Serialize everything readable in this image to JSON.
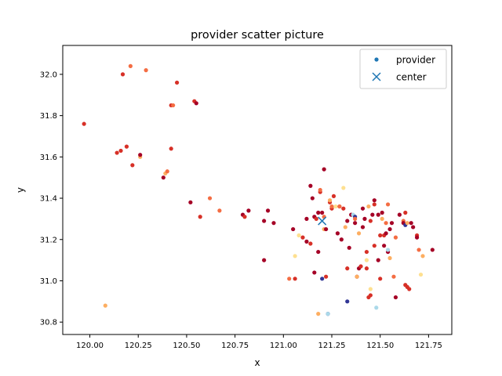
{
  "chart_data": {
    "type": "scatter",
    "title": "provider scatter picture",
    "xlabel": "x",
    "ylabel": "y",
    "xlim": [
      119.86,
      121.87
    ],
    "ylim": [
      30.74,
      32.14
    ],
    "xticks": [
      120.0,
      120.25,
      120.5,
      120.75,
      121.0,
      121.25,
      121.5,
      121.75
    ],
    "xtick_labels": [
      "120.00",
      "120.25",
      "120.50",
      "120.75",
      "121.00",
      "121.25",
      "121.50",
      "121.75"
    ],
    "yticks": [
      30.8,
      31.0,
      31.2,
      31.4,
      31.6,
      31.8,
      32.0
    ],
    "ytick_labels": [
      "30.8",
      "31.0",
      "31.2",
      "31.4",
      "31.6",
      "31.8",
      "32.0"
    ],
    "grid": false,
    "legend": {
      "placement": "top-right",
      "entries": [
        {
          "label": "provider",
          "marker": "dot",
          "color": "#1f77b4"
        },
        {
          "label": "center",
          "marker": "x",
          "color": "#1f77b4"
        }
      ]
    },
    "colors": {
      "dark_red": "#a50026",
      "red": "#d73027",
      "orange": "#f46d43",
      "light_orange": "#fdae61",
      "pale_yellow": "#fee090",
      "light_blue": "#abd9e9",
      "dark_blue": "#313695"
    },
    "series": [
      {
        "name": "provider",
        "marker": "dot",
        "points": [
          [
            119.97,
            31.76,
            "red"
          ],
          [
            120.08,
            30.88,
            "light_orange"
          ],
          [
            120.14,
            31.62,
            "red"
          ],
          [
            120.16,
            31.63,
            "red"
          ],
          [
            120.17,
            32.0,
            "red"
          ],
          [
            120.19,
            31.65,
            "red"
          ],
          [
            120.21,
            32.04,
            "orange"
          ],
          [
            120.22,
            31.56,
            "red"
          ],
          [
            120.26,
            31.6,
            "light_orange"
          ],
          [
            120.26,
            31.61,
            "dark_red"
          ],
          [
            120.29,
            32.02,
            "orange"
          ],
          [
            120.38,
            31.5,
            "dark_red"
          ],
          [
            120.39,
            31.52,
            "light_orange"
          ],
          [
            120.4,
            31.53,
            "orange"
          ],
          [
            120.42,
            31.85,
            "red"
          ],
          [
            120.42,
            31.64,
            "red"
          ],
          [
            120.43,
            31.85,
            "orange"
          ],
          [
            120.45,
            31.96,
            "red"
          ],
          [
            120.52,
            31.38,
            "dark_red"
          ],
          [
            120.54,
            31.87,
            "red"
          ],
          [
            120.55,
            31.86,
            "dark_red"
          ],
          [
            120.57,
            31.31,
            "red"
          ],
          [
            120.62,
            31.4,
            "orange"
          ],
          [
            120.67,
            31.34,
            "orange"
          ],
          [
            120.79,
            31.32,
            "dark_red"
          ],
          [
            120.8,
            31.31,
            "red"
          ],
          [
            120.82,
            31.34,
            "dark_red"
          ],
          [
            120.9,
            31.29,
            "dark_red"
          ],
          [
            120.9,
            31.1,
            "dark_red"
          ],
          [
            120.92,
            31.34,
            "dark_red"
          ],
          [
            120.95,
            31.28,
            "dark_red"
          ],
          [
            121.03,
            31.01,
            "orange"
          ],
          [
            121.05,
            31.25,
            "dark_red"
          ],
          [
            121.06,
            31.01,
            "red"
          ],
          [
            121.06,
            31.12,
            "pale_yellow"
          ],
          [
            121.08,
            31.22,
            "pale_yellow"
          ],
          [
            121.1,
            31.21,
            "red"
          ],
          [
            121.12,
            31.3,
            "dark_red"
          ],
          [
            121.12,
            31.19,
            "dark_red"
          ],
          [
            121.14,
            31.18,
            "red"
          ],
          [
            121.14,
            31.46,
            "dark_red"
          ],
          [
            121.15,
            31.4,
            "dark_red"
          ],
          [
            121.16,
            31.04,
            "dark_red"
          ],
          [
            121.16,
            31.31,
            "dark_red"
          ],
          [
            121.17,
            31.3,
            "red"
          ],
          [
            121.18,
            31.33,
            "dark_red"
          ],
          [
            121.18,
            31.14,
            "dark_red"
          ],
          [
            121.18,
            30.84,
            "light_orange"
          ],
          [
            121.19,
            31.43,
            "red"
          ],
          [
            121.19,
            31.44,
            "orange"
          ],
          [
            121.2,
            31.01,
            "dark_blue"
          ],
          [
            121.2,
            31.33,
            "dark_red"
          ],
          [
            121.21,
            31.54,
            "dark_red"
          ],
          [
            121.21,
            31.31,
            "orange"
          ],
          [
            121.21,
            31.25,
            "light_orange"
          ],
          [
            121.22,
            31.25,
            "dark_red"
          ],
          [
            121.22,
            31.02,
            "red"
          ],
          [
            121.23,
            30.84,
            "dark_blue"
          ],
          [
            121.23,
            30.84,
            "light_blue"
          ],
          [
            121.24,
            31.38,
            "red"
          ],
          [
            121.24,
            31.39,
            "light_orange"
          ],
          [
            121.25,
            31.35,
            "red"
          ],
          [
            121.25,
            31.36,
            "orange"
          ],
          [
            121.26,
            31.41,
            "red"
          ],
          [
            121.27,
            31.36,
            "pale_yellow"
          ],
          [
            121.28,
            31.23,
            "dark_red"
          ],
          [
            121.29,
            31.36,
            "red"
          ],
          [
            121.29,
            31.36,
            "orange"
          ],
          [
            121.3,
            31.2,
            "dark_red"
          ],
          [
            121.31,
            31.45,
            "pale_yellow"
          ],
          [
            121.31,
            31.35,
            "red"
          ],
          [
            121.32,
            31.26,
            "light_orange"
          ],
          [
            121.33,
            31.29,
            "dark_red"
          ],
          [
            121.33,
            31.06,
            "red"
          ],
          [
            121.33,
            30.9,
            "dark_blue"
          ],
          [
            121.34,
            31.16,
            "dark_red"
          ],
          [
            121.35,
            31.32,
            "dark_red"
          ],
          [
            121.36,
            31.32,
            "light_blue"
          ],
          [
            121.37,
            31.31,
            "dark_blue"
          ],
          [
            121.37,
            31.3,
            "orange"
          ],
          [
            121.37,
            31.28,
            "dark_red"
          ],
          [
            121.38,
            31.02,
            "dark_red"
          ],
          [
            121.38,
            31.02,
            "light_orange"
          ],
          [
            121.39,
            31.23,
            "light_orange"
          ],
          [
            121.39,
            31.06,
            "dark_red"
          ],
          [
            121.4,
            31.07,
            "red"
          ],
          [
            121.41,
            31.26,
            "dark_red"
          ],
          [
            121.41,
            31.35,
            "dark_red"
          ],
          [
            121.42,
            31.3,
            "dark_red"
          ],
          [
            121.43,
            31.14,
            "red"
          ],
          [
            121.43,
            31.06,
            "red"
          ],
          [
            121.43,
            31.1,
            "pale_yellow"
          ],
          [
            121.44,
            30.92,
            "red"
          ],
          [
            121.44,
            31.36,
            "light_orange"
          ],
          [
            121.45,
            31.29,
            "red"
          ],
          [
            121.45,
            30.93,
            "red"
          ],
          [
            121.45,
            30.96,
            "pale_yellow"
          ],
          [
            121.46,
            31.32,
            "dark_red"
          ],
          [
            121.47,
            31.39,
            "dark_red"
          ],
          [
            121.47,
            31.37,
            "red"
          ],
          [
            121.47,
            31.17,
            "red"
          ],
          [
            121.48,
            30.87,
            "light_blue"
          ],
          [
            121.49,
            31.32,
            "dark_red"
          ],
          [
            121.49,
            31.1,
            "dark_red"
          ],
          [
            121.5,
            31.22,
            "red"
          ],
          [
            121.5,
            31.01,
            "red"
          ],
          [
            121.51,
            31.3,
            "light_orange"
          ],
          [
            121.51,
            31.33,
            "dark_red"
          ],
          [
            121.52,
            31.17,
            "dark_red"
          ],
          [
            121.52,
            31.22,
            "red"
          ],
          [
            121.53,
            31.28,
            "orange"
          ],
          [
            121.53,
            31.23,
            "dark_red"
          ],
          [
            121.54,
            31.37,
            "orange"
          ],
          [
            121.54,
            31.14,
            "dark_red"
          ],
          [
            121.54,
            31.15,
            "light_blue"
          ],
          [
            121.55,
            31.25,
            "dark_red"
          ],
          [
            121.55,
            31.11,
            "light_orange"
          ],
          [
            121.56,
            31.28,
            "dark_red"
          ],
          [
            121.57,
            31.02,
            "orange"
          ],
          [
            121.58,
            31.21,
            "orange"
          ],
          [
            121.58,
            30.92,
            "dark_red"
          ],
          [
            121.6,
            31.32,
            "dark_red"
          ],
          [
            121.62,
            31.29,
            "orange"
          ],
          [
            121.62,
            31.28,
            "dark_red"
          ],
          [
            121.63,
            31.33,
            "red"
          ],
          [
            121.63,
            31.27,
            "dark_blue"
          ],
          [
            121.63,
            30.98,
            "red"
          ],
          [
            121.64,
            30.97,
            "red"
          ],
          [
            121.64,
            31.28,
            "light_orange"
          ],
          [
            121.65,
            30.96,
            "red"
          ],
          [
            121.66,
            31.28,
            "dark_red"
          ],
          [
            121.67,
            31.26,
            "dark_red"
          ],
          [
            121.69,
            31.22,
            "red"
          ],
          [
            121.69,
            31.21,
            "dark_red"
          ],
          [
            121.7,
            31.15,
            "orange"
          ],
          [
            121.71,
            31.03,
            "pale_yellow"
          ],
          [
            121.72,
            31.12,
            "light_orange"
          ],
          [
            121.77,
            31.15,
            "dark_red"
          ]
        ]
      },
      {
        "name": "center",
        "marker": "x",
        "color": "#1f77b4",
        "points": [
          [
            121.2,
            31.29
          ]
        ]
      }
    ]
  }
}
